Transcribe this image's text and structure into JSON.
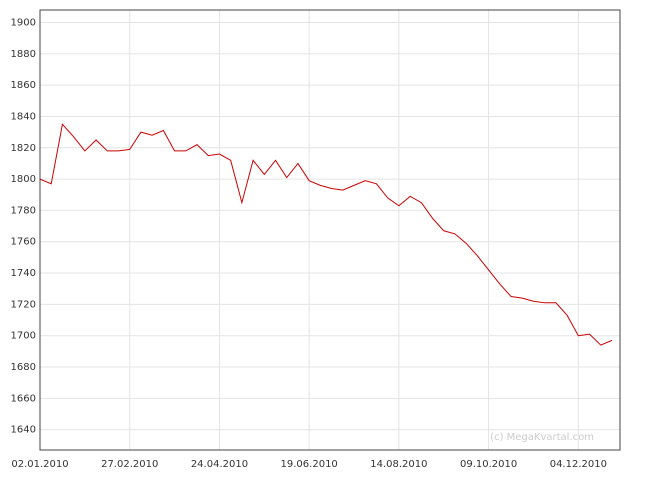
{
  "chart_data": {
    "type": "line",
    "x": [
      "02.01.2010",
      "09.01.2010",
      "16.01.2010",
      "23.01.2010",
      "30.01.2010",
      "06.02.2010",
      "13.02.2010",
      "20.02.2010",
      "27.02.2010",
      "06.03.2010",
      "13.03.2010",
      "20.03.2010",
      "27.03.2010",
      "03.04.2010",
      "10.04.2010",
      "17.04.2010",
      "24.04.2010",
      "01.05.2010",
      "08.05.2010",
      "15.05.2010",
      "22.05.2010",
      "29.05.2010",
      "05.06.2010",
      "12.06.2010",
      "19.06.2010",
      "26.06.2010",
      "03.07.2010",
      "10.07.2010",
      "17.07.2010",
      "24.07.2010",
      "31.07.2010",
      "07.08.2010",
      "14.08.2010",
      "21.08.2010",
      "28.08.2010",
      "04.09.2010",
      "11.09.2010",
      "18.09.2010",
      "25.09.2010",
      "02.10.2010",
      "09.10.2010",
      "16.10.2010",
      "23.10.2010",
      "30.10.2010",
      "06.11.2010",
      "13.11.2010",
      "20.11.2010",
      "27.11.2010",
      "04.12.2010",
      "11.12.2010",
      "18.12.2010",
      "25.12.2010"
    ],
    "series": [
      {
        "color": "#cc0000",
        "values": [
          1800,
          1797,
          1835,
          1827,
          1818,
          1825,
          1818,
          1818,
          1819,
          1830,
          1828,
          1831,
          1818,
          1818,
          1822,
          1815,
          1816,
          1812,
          1785,
          1812,
          1803,
          1812,
          1801,
          1810,
          1799,
          1796,
          1794,
          1793,
          1796,
          1799,
          1797,
          1788,
          1783,
          1789,
          1785,
          1775,
          1767,
          1765,
          1759,
          1751,
          1742,
          1733,
          1725,
          1724,
          1722,
          1721,
          1721,
          1713,
          1700,
          1701,
          1694,
          1697
        ]
      }
    ],
    "xlim": [
      "02.01.2010",
      "30.12.2010"
    ],
    "xticks": [
      "02.01.2010",
      "27.02.2010",
      "24.04.2010",
      "19.06.2010",
      "14.08.2010",
      "09.10.2010",
      "04.12.2010"
    ],
    "ylim": [
      1627,
      1908
    ],
    "yticks": [
      1640,
      1660,
      1680,
      1700,
      1720,
      1740,
      1760,
      1780,
      1800,
      1820,
      1840,
      1860,
      1880,
      1900
    ],
    "grid": true,
    "watermark": "(c) MegaKvartal.com"
  }
}
